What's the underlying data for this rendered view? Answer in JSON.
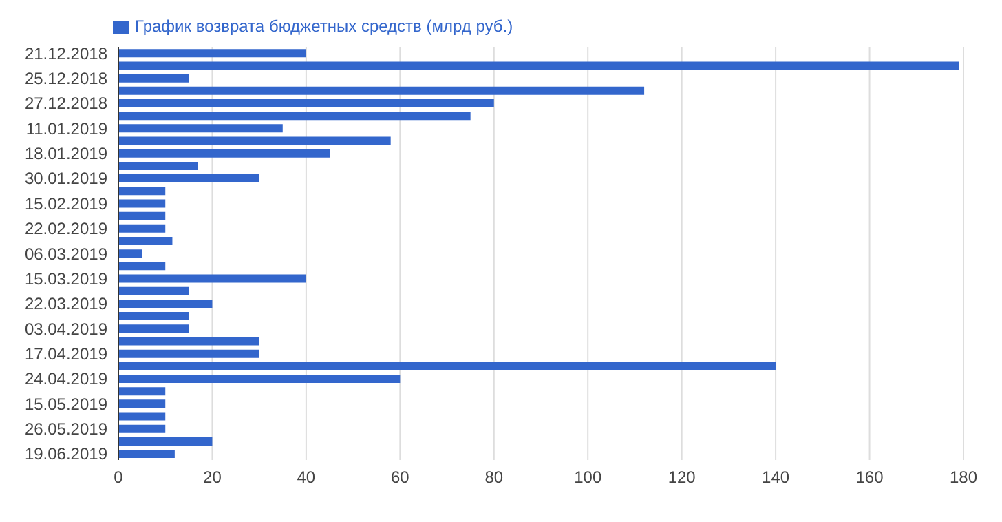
{
  "chart_data": {
    "type": "bar",
    "orientation": "horizontal",
    "categories": [
      "21.12.2018",
      null,
      "25.12.2018",
      null,
      "27.12.2018",
      null,
      "11.01.2019",
      null,
      "18.01.2019",
      null,
      "30.01.2019",
      null,
      "15.02.2019",
      null,
      "22.02.2019",
      null,
      "06.03.2019",
      null,
      "15.03.2019",
      null,
      "22.03.2019",
      null,
      "03.04.2019",
      null,
      "17.04.2019",
      null,
      "24.04.2019",
      null,
      "15.05.2019",
      null,
      "26.05.2019",
      null,
      "19.06.2019"
    ],
    "series": [
      {
        "name": "График возврата бюджетных средств (млрд руб.)",
        "color": "#3366cc",
        "values": [
          40,
          179,
          15,
          112,
          80,
          75,
          35,
          58,
          45,
          17,
          30,
          10,
          10,
          10,
          10,
          11.5,
          5,
          10,
          40,
          15,
          20,
          15,
          15,
          30,
          30,
          140,
          60,
          10,
          10,
          10,
          10,
          20,
          12
        ]
      }
    ],
    "xlim": [
      0,
      180
    ],
    "xticks": [
      0,
      20,
      40,
      60,
      80,
      100,
      120,
      140,
      160,
      180
    ],
    "grid": "x",
    "legend": "top left"
  }
}
